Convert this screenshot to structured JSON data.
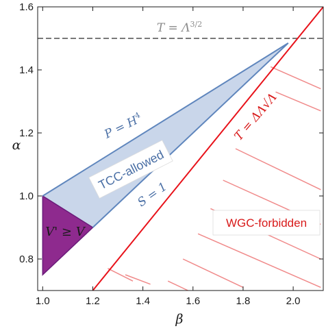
{
  "chart_data": {
    "type": "area",
    "xlabel": "β",
    "ylabel": "α",
    "xlim": [
      0.98,
      2.12
    ],
    "ylim": [
      0.7,
      1.6
    ],
    "x_ticks": [
      {
        "value": 1.0,
        "label": "1.0"
      },
      {
        "value": 1.2,
        "label": "1.2"
      },
      {
        "value": 1.4,
        "label": "1.4"
      },
      {
        "value": 1.6,
        "label": "1.6"
      },
      {
        "value": 1.8,
        "label": "1.8"
      },
      {
        "value": 2.0,
        "label": "2.0"
      }
    ],
    "y_ticks": [
      {
        "value": 0.8,
        "label": "0.8"
      },
      {
        "value": 1.0,
        "label": "1.0"
      },
      {
        "value": 1.2,
        "label": "1.2"
      },
      {
        "value": 1.4,
        "label": "1.4"
      },
      {
        "value": 1.6,
        "label": "1.6"
      }
    ],
    "grid": false,
    "colors": {
      "tcc_fill": "#c9d6ea",
      "tcc_edge": "#5f86bd",
      "purple_fill": "#8e2a8e",
      "purple_edge": "#6a1b7a",
      "red_line": "#e8121a",
      "hatch": "#f08a8a",
      "dashed": "#666666",
      "label_blue": "#4a6fa5",
      "label_red": "#d81a1a"
    },
    "regions": {
      "tcc_allowed": {
        "label": "TCC-allowed",
        "vertices": [
          [
            1.0,
            1.0
          ],
          [
            1.98,
            1.485
          ],
          [
            1.2,
            0.9
          ]
        ]
      },
      "v_region": {
        "label": "V' ≥ V",
        "vertices": [
          [
            1.0,
            0.75
          ],
          [
            1.0,
            1.0
          ],
          [
            1.2,
            0.9
          ]
        ]
      },
      "wgc_forbidden": {
        "label": "WGC-forbidden"
      }
    },
    "curves": {
      "P_line": {
        "label": "P = H⁴",
        "points": [
          [
            1.0,
            1.0
          ],
          [
            1.98,
            1.485
          ]
        ]
      },
      "S_line": {
        "label": "S = 1",
        "points": [
          [
            1.2,
            0.9
          ],
          [
            1.98,
            1.485
          ]
        ]
      },
      "T_line": {
        "label": "T = ΔΛ√Λ",
        "points": [
          [
            1.2,
            0.7
          ],
          [
            2.12,
            1.6
          ]
        ]
      },
      "T_dashed": {
        "label": "T = Λ³ᐟ²",
        "y": 1.5
      }
    },
    "hatch_lines": [
      [
        [
          1.91,
          1.41
        ],
        [
          2.11,
          1.34
        ]
      ],
      [
        [
          1.93,
          1.33
        ],
        [
          2.11,
          1.27
        ]
      ],
      [
        [
          1.77,
          1.15
        ],
        [
          2.11,
          1.02
        ]
      ],
      [
        [
          1.72,
          1.05
        ],
        [
          2.11,
          0.91
        ]
      ],
      [
        [
          1.67,
          0.96
        ],
        [
          2.11,
          0.8
        ]
      ],
      [
        [
          1.62,
          0.88
        ],
        [
          2.11,
          0.71
        ]
      ],
      [
        [
          1.56,
          0.8
        ],
        [
          1.8,
          0.71
        ]
      ],
      [
        [
          1.33,
          0.75
        ],
        [
          1.43,
          0.72
        ]
      ],
      [
        [
          1.26,
          0.77
        ],
        [
          1.36,
          0.73
        ]
      ],
      [
        [
          1.5,
          0.73
        ],
        [
          1.58,
          0.7
        ]
      ]
    ]
  }
}
